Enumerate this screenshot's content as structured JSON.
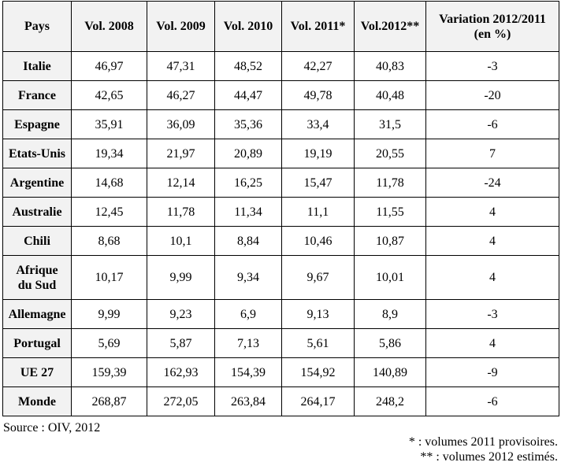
{
  "table": {
    "headers": [
      "Pays",
      "Vol. 2008",
      "Vol. 2009",
      "Vol. 2010",
      "Vol. 2011*",
      "Vol.2012**"
    ],
    "variation_header_line1": "Variation 2012/2011",
    "variation_header_line2": "(en %)",
    "rows": [
      {
        "country": "Italie",
        "values": [
          "46,97",
          "47,31",
          "48,52",
          "42,27",
          "40,83"
        ],
        "variation": "-3"
      },
      {
        "country": "France",
        "values": [
          "42,65",
          "46,27",
          "44,47",
          "49,78",
          "40,48"
        ],
        "variation": "-20"
      },
      {
        "country": "Espagne",
        "values": [
          "35,91",
          "36,09",
          "35,36",
          "33,4",
          "31,5"
        ],
        "variation": "-6"
      },
      {
        "country": "Etats-Unis",
        "values": [
          "19,34",
          "21,97",
          "20,89",
          "19,19",
          "20,55"
        ],
        "variation": "7"
      },
      {
        "country": "Argentine",
        "values": [
          "14,68",
          "12,14",
          "16,25",
          "15,47",
          "11,78"
        ],
        "variation": "-24"
      },
      {
        "country": "Australie",
        "values": [
          "12,45",
          "11,78",
          "11,34",
          "11,1",
          "11,55"
        ],
        "variation": "4"
      },
      {
        "country": "Chili",
        "values": [
          "8,68",
          "10,1",
          "8,84",
          "10,46",
          "10,87"
        ],
        "variation": "4"
      },
      {
        "country_line1": "Afrique",
        "country_line2": "du Sud",
        "values": [
          "10,17",
          "9,99",
          "9,34",
          "9,67",
          "10,01"
        ],
        "variation": "4"
      },
      {
        "country": "Allemagne",
        "values": [
          "9,99",
          "9,23",
          "6,9",
          "9,13",
          "8,9"
        ],
        "variation": "-3"
      },
      {
        "country": "Portugal",
        "values": [
          "5,69",
          "5,87",
          "7,13",
          "5,61",
          "5,86"
        ],
        "variation": "4"
      },
      {
        "country": "UE 27",
        "values": [
          "159,39",
          "162,93",
          "154,39",
          "154,92",
          "140,89"
        ],
        "variation": "-9"
      },
      {
        "country": "Monde",
        "values": [
          "268,87",
          "272,05",
          "263,84",
          "264,17",
          "248,2"
        ],
        "variation": "-6"
      }
    ]
  },
  "source": "Source : OIV, 2012",
  "notes": {
    "note_2011": "* : volumes 2011 provisoires.",
    "note_2012": "** : volumes 2012 estimés."
  }
}
